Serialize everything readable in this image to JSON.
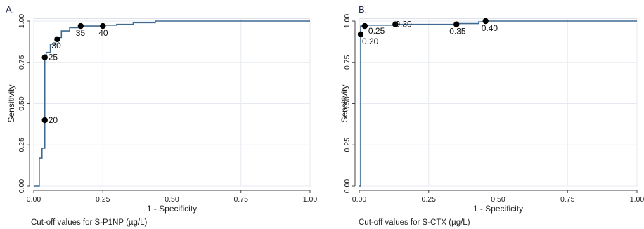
{
  "colors": {
    "curve": "#3e6a92",
    "marker": "#000000",
    "grid": "#e6eaf0"
  },
  "chart_data": [
    {
      "type": "line",
      "panel_label": "A.",
      "xlabel": "1 - Specificity",
      "ylabel": "Sensitivity",
      "note": "Cut-off values for S-P1NP (µg/L)",
      "xlim": [
        0,
        1
      ],
      "ylim": [
        0,
        1
      ],
      "xticks": [
        "0.00",
        "0.25",
        "0.50",
        "0.75",
        "1.00"
      ],
      "yticks": [
        "0.00",
        "0.25",
        "0.50",
        "0.75",
        "1.00"
      ],
      "grid": true,
      "series": [
        {
          "x": [
            0,
            0.02,
            0.02,
            0.03,
            0.03,
            0.04,
            0.04,
            0.045,
            0.045,
            0.06,
            0.06,
            0.08,
            0.08,
            0.1,
            0.1,
            0.13,
            0.13,
            0.17,
            0.17,
            0.25,
            0.25,
            0.3,
            0.3,
            0.36,
            0.36,
            0.44,
            0.44,
            1.0
          ],
          "y": [
            0,
            0,
            0.17,
            0.17,
            0.23,
            0.23,
            0.78,
            0.78,
            0.81,
            0.81,
            0.86,
            0.86,
            0.9,
            0.9,
            0.94,
            0.94,
            0.96,
            0.96,
            0.97,
            0.97,
            0.975,
            0.975,
            0.98,
            0.98,
            0.99,
            0.99,
            1.0,
            1.0
          ]
        }
      ],
      "points": [
        {
          "x": 0.04,
          "y": 0.4,
          "label": "20"
        },
        {
          "x": 0.04,
          "y": 0.78,
          "label": "25"
        },
        {
          "x": 0.085,
          "y": 0.89,
          "label": "30"
        },
        {
          "x": 0.17,
          "y": 0.97,
          "label": "35"
        },
        {
          "x": 0.25,
          "y": 0.97,
          "label": "40"
        }
      ]
    },
    {
      "type": "line",
      "panel_label": "B.",
      "xlabel": "1 - Specificity",
      "ylabel": "Sensitivity",
      "note": "Cut-off values for S-CTX (µg/L)",
      "xlim": [
        0,
        1
      ],
      "ylim": [
        0,
        1
      ],
      "xticks": [
        "0.00",
        "0.25",
        "0.50",
        "0.75",
        "1.00"
      ],
      "yticks": [
        "0.00",
        "0.25",
        "0.50",
        "0.75",
        "1.00"
      ],
      "grid": true,
      "series": [
        {
          "x": [
            0,
            0.005,
            0.005,
            0.02,
            0.02,
            0.13,
            0.13,
            0.35,
            0.35,
            0.43,
            0.43,
            0.46,
            0.46,
            1.0
          ],
          "y": [
            0,
            0,
            0.97,
            0.97,
            0.975,
            0.975,
            0.98,
            0.98,
            0.985,
            0.985,
            0.995,
            0.995,
            1.0,
            1.0
          ]
        }
      ],
      "points": [
        {
          "x": 0.005,
          "y": 0.92,
          "label": "0.20"
        },
        {
          "x": 0.02,
          "y": 0.97,
          "label": "0.25"
        },
        {
          "x": 0.13,
          "y": 0.98,
          "label": "0.30"
        },
        {
          "x": 0.35,
          "y": 0.98,
          "label": "0.35"
        },
        {
          "x": 0.455,
          "y": 1.0,
          "label": "0.40"
        }
      ]
    }
  ]
}
